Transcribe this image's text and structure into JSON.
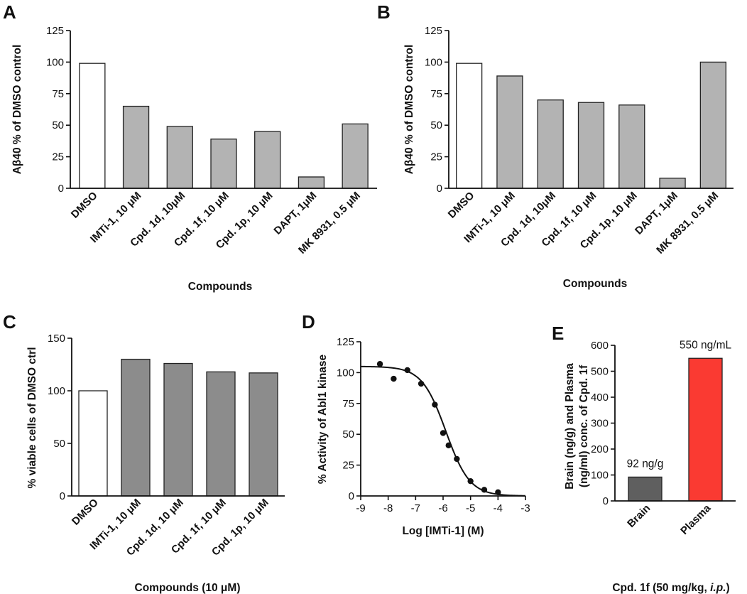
{
  "panels": {
    "A": {
      "letter": "A",
      "type": "bar",
      "ylabel": "Aβ40 % of DMSO control",
      "xlabel": "Compounds",
      "ylim": [
        0,
        125
      ],
      "yticks": [
        0,
        25,
        50,
        75,
        100,
        125
      ],
      "categories": [
        "DMSO",
        "IMTi-1, 10 μM",
        "Cpd. 1d, 10μM",
        "Cpd. 1f, 10 μM",
        "Cpd. 1p, 10 μM",
        "DAPT, 1μM",
        "MK 8931, 0.5 μM"
      ],
      "values": [
        99,
        65,
        49,
        39,
        45,
        9,
        51
      ],
      "colors": [
        "#ffffff",
        "#b3b3b3",
        "#b3b3b3",
        "#b3b3b3",
        "#b3b3b3",
        "#b3b3b3",
        "#b3b3b3"
      ]
    },
    "B": {
      "letter": "B",
      "type": "bar",
      "ylabel": "Aβ40 % of DMSO control",
      "xlabel": "Compounds",
      "ylim": [
        0,
        125
      ],
      "yticks": [
        0,
        25,
        50,
        75,
        100,
        125
      ],
      "categories": [
        "DMSO",
        "IMTi-1, 10 μM",
        "Cpd. 1d, 10μM",
        "Cpd. 1f, 10 μM",
        "Cpd. 1p, 10 μM",
        "DAPT, 1μM",
        "MK 8931, 0.5 μM"
      ],
      "values": [
        99,
        89,
        70,
        68,
        66,
        8,
        100
      ],
      "colors": [
        "#ffffff",
        "#b3b3b3",
        "#b3b3b3",
        "#b3b3b3",
        "#b3b3b3",
        "#b3b3b3",
        "#b3b3b3"
      ]
    },
    "C": {
      "letter": "C",
      "type": "bar",
      "ylabel": "% viable cells of DMSO ctrl",
      "xlabel": "Compounds (10 μM)",
      "ylim": [
        0,
        150
      ],
      "yticks": [
        0,
        50,
        100,
        150
      ],
      "categories": [
        "DMSO",
        "IMTi-1, 10 μM",
        "Cpd. 1d, 10 μM",
        "Cpd. 1f, 10 μM",
        "Cpd. 1p, 10 μM"
      ],
      "values": [
        100,
        130,
        126,
        118,
        117
      ],
      "colors": [
        "#ffffff",
        "#8c8c8c",
        "#8c8c8c",
        "#8c8c8c",
        "#8c8c8c"
      ]
    },
    "D": {
      "letter": "D",
      "type": "scatter",
      "ylabel": "% Activity of Abl1 kinase",
      "xlabel": "Log [IMTi-1] (M)",
      "xlim": [
        -9,
        -3
      ],
      "ylim": [
        0,
        125
      ],
      "xticks": [
        -9,
        -8,
        -7,
        -6,
        -5,
        -4,
        -3
      ],
      "yticks": [
        0,
        25,
        50,
        75,
        100,
        125
      ],
      "points": {
        "x": [
          -8.3,
          -7.8,
          -7.3,
          -6.8,
          -6.3,
          -6.0,
          -5.8,
          -5.5,
          -5.0,
          -4.5,
          -4.0
        ],
        "y": [
          107,
          95,
          102,
          91,
          74,
          51,
          41,
          30,
          12,
          5,
          3
        ]
      },
      "fit": {
        "top": 105,
        "bottom": 0,
        "log_ic50": -5.9,
        "hill": 1.0
      }
    },
    "E": {
      "letter": "E",
      "type": "bar",
      "ylabel_line1": "Brain (ng/g) and Plasma",
      "ylabel_line2": "(ng/ml) conc. of Cpd. 1f",
      "xlabel_main": "Cpd. 1f (50 mg/kg, ",
      "xlabel_italic": "i.p.",
      "xlabel_end": ")",
      "ylim": [
        0,
        600
      ],
      "yticks": [
        0,
        100,
        200,
        300,
        400,
        500,
        600
      ],
      "categories": [
        "Brain",
        "Plasma"
      ],
      "values": [
        92,
        550
      ],
      "colors": [
        "#5f5f5f",
        "#fa3a32"
      ],
      "annotations": [
        "92 ng/g",
        "550 ng/mL"
      ]
    }
  },
  "chart_data": [
    {
      "type": "bar",
      "panel": "A",
      "title": "",
      "ylabel": "Aβ40 % of DMSO control",
      "xlabel": "Compounds",
      "ylim": [
        0,
        125
      ],
      "categories": [
        "DMSO",
        "IMTi-1, 10 μM",
        "Cpd. 1d, 10μM",
        "Cpd. 1f, 10 μM",
        "Cpd. 1p, 10 μM",
        "DAPT, 1μM",
        "MK 8931, 0.5 μM"
      ],
      "values": [
        99,
        65,
        49,
        39,
        45,
        9,
        51
      ]
    },
    {
      "type": "bar",
      "panel": "B",
      "title": "",
      "ylabel": "Aβ40 % of DMSO control",
      "xlabel": "Compounds",
      "ylim": [
        0,
        125
      ],
      "categories": [
        "DMSO",
        "IMTi-1, 10 μM",
        "Cpd. 1d, 10μM",
        "Cpd. 1f, 10 μM",
        "Cpd. 1p, 10 μM",
        "DAPT, 1μM",
        "MK 8931, 0.5 μM"
      ],
      "values": [
        99,
        89,
        70,
        68,
        66,
        8,
        100
      ]
    },
    {
      "type": "bar",
      "panel": "C",
      "title": "",
      "ylabel": "% viable cells of DMSO ctrl",
      "xlabel": "Compounds (10 μM)",
      "ylim": [
        0,
        150
      ],
      "categories": [
        "DMSO",
        "IMTi-1, 10 μM",
        "Cpd. 1d, 10 μM",
        "Cpd. 1f, 10 μM",
        "Cpd. 1p, 10 μM"
      ],
      "values": [
        100,
        130,
        126,
        118,
        117
      ]
    },
    {
      "type": "scatter",
      "panel": "D",
      "title": "",
      "ylabel": "% Activity of Abl1 kinase",
      "xlabel": "Log [IMTi-1] (M)",
      "xlim": [
        -9,
        -3
      ],
      "ylim": [
        0,
        125
      ],
      "x": [
        -8.3,
        -7.8,
        -7.3,
        -6.8,
        -6.3,
        -6.0,
        -5.8,
        -5.5,
        -5.0,
        -4.5,
        -4.0
      ],
      "y": [
        107,
        95,
        102,
        91,
        74,
        51,
        41,
        30,
        12,
        5,
        3
      ],
      "fit": "sigmoidal dose-response, log IC50 ≈ -5.9"
    },
    {
      "type": "bar",
      "panel": "E",
      "title": "",
      "ylabel": "Brain (ng/g) and Plasma (ng/ml) conc. of Cpd. 1f",
      "xlabel": "Cpd. 1f (50 mg/kg, i.p.)",
      "ylim": [
        0,
        600
      ],
      "categories": [
        "Brain",
        "Plasma"
      ],
      "values": [
        92,
        550
      ],
      "annotations": [
        "92 ng/g",
        "550 ng/mL"
      ]
    }
  ]
}
